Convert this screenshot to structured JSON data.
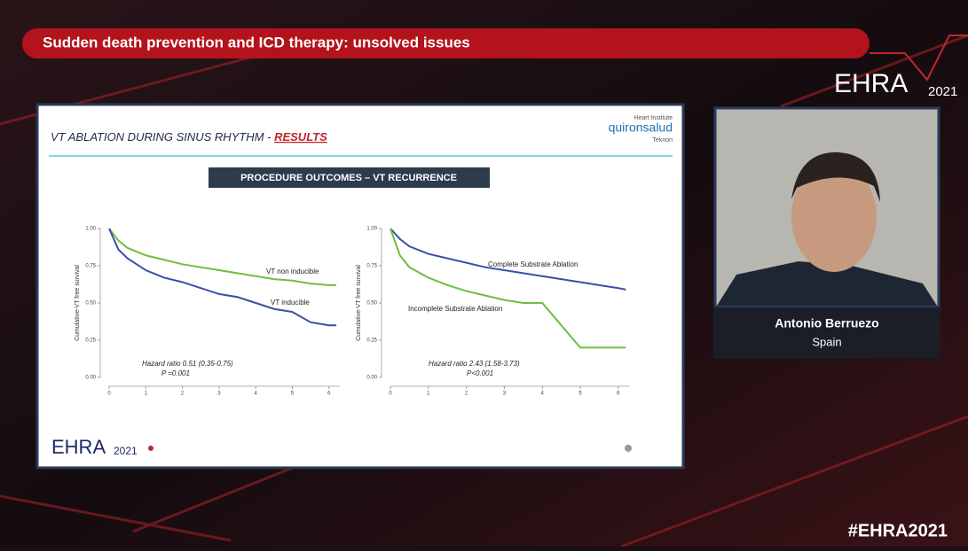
{
  "header": {
    "title": "Sudden death prevention and ICD therapy: unsolved issues"
  },
  "brand": {
    "name": "EHRA",
    "year": "2021",
    "hashtag": "#EHRA2021"
  },
  "slide": {
    "title": "VT ABLATION DURING SINUS RHYTHM - ",
    "title_link": "RESULTS",
    "logo": {
      "top": "Heart Institute",
      "name": "quironsalud",
      "bottom": "Teknon"
    },
    "banner": "PROCEDURE OUTCOMES – VT RECURRENCE",
    "footer_brand": "EHRA",
    "footer_year": "2021"
  },
  "speaker": {
    "name": "Antonio Berruezo",
    "country": "Spain"
  },
  "chart_data": [
    {
      "type": "line",
      "ylabel": "Cumulative-VT free survival",
      "x": [
        0,
        0.25,
        0.5,
        1,
        1.5,
        2,
        2.5,
        3,
        3.5,
        4,
        4.5,
        5,
        5.5,
        6,
        6.2
      ],
      "series": [
        {
          "name": "VT non inducible",
          "color": "#6fbf3c",
          "values": [
            1,
            0.92,
            0.87,
            0.82,
            0.79,
            0.76,
            0.74,
            0.72,
            0.7,
            0.68,
            0.66,
            0.65,
            0.63,
            0.62,
            0.62
          ]
        },
        {
          "name": "VT inducible",
          "color": "#3a4fa8",
          "values": [
            1,
            0.86,
            0.8,
            0.72,
            0.67,
            0.64,
            0.6,
            0.56,
            0.54,
            0.5,
            0.46,
            0.44,
            0.37,
            0.35,
            0.35
          ]
        }
      ],
      "annotations": [
        "Hazard ratio  0.51 (0.35-0.75)",
        "P =0.001"
      ],
      "xlim": [
        0,
        6.3
      ],
      "ylim": [
        0,
        1
      ],
      "xticks": [
        0,
        1,
        2,
        3,
        4,
        5,
        6
      ],
      "yticks": [
        {
          "value": 0,
          "label": "0.00"
        },
        {
          "value": 0.25,
          "label": "0.25"
        },
        {
          "value": 0.5,
          "label": "0.50"
        },
        {
          "value": 0.75,
          "label": "0.75"
        },
        {
          "value": 1,
          "label": "1.00"
        }
      ]
    },
    {
      "type": "line",
      "ylabel": "Cumulative-VT free survival",
      "x": [
        0,
        0.25,
        0.5,
        1,
        1.5,
        2,
        2.5,
        3,
        3.5,
        4,
        4.5,
        5,
        5.5,
        6,
        6.2
      ],
      "series": [
        {
          "name": "Complete Substrate Ablation",
          "color": "#3a4fa8",
          "values": [
            1,
            0.93,
            0.88,
            0.83,
            0.8,
            0.77,
            0.74,
            0.72,
            0.7,
            0.68,
            0.66,
            0.64,
            0.62,
            0.6,
            0.59
          ]
        },
        {
          "name": "Incomplete Substrate Ablation",
          "color": "#6fbf3c",
          "values": [
            1,
            0.82,
            0.74,
            0.67,
            0.62,
            0.58,
            0.55,
            0.52,
            0.5,
            0.5,
            0.35,
            0.2,
            0.2,
            0.2,
            0.2
          ]
        }
      ],
      "annotations": [
        "Hazard ratio  2.43 (1.58-3.73)",
        "P<0.001"
      ],
      "xlim": [
        0,
        6.3
      ],
      "ylim": [
        0,
        1
      ],
      "xticks": [
        0,
        1,
        2,
        3,
        4,
        5,
        6
      ],
      "yticks": [
        {
          "value": 0,
          "label": "0.00"
        },
        {
          "value": 0.25,
          "label": "0.25"
        },
        {
          "value": 0.5,
          "label": "0.50"
        },
        {
          "value": 0.75,
          "label": "0.75"
        },
        {
          "value": 1,
          "label": "1.00"
        }
      ]
    }
  ]
}
